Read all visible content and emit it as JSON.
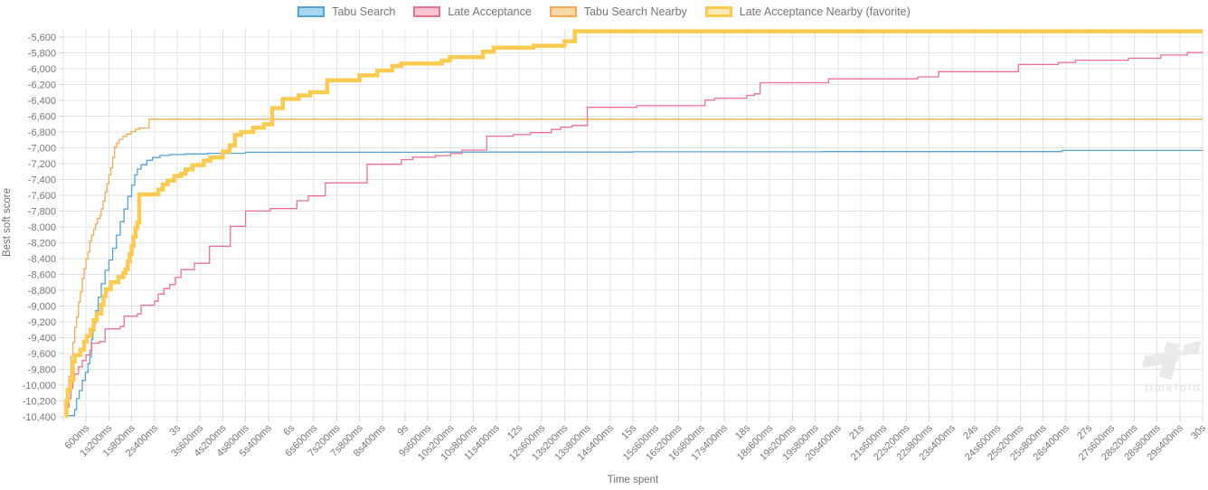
{
  "legend": {
    "items": [
      {
        "label": "Tabu Search",
        "fill": "#a9d6f1",
        "border": "#55a2da",
        "border_width": 2
      },
      {
        "label": "Late Acceptance",
        "fill": "#f9c3d0",
        "border": "#ef7190",
        "border_width": 2
      },
      {
        "label": "Tabu Search Nearby",
        "fill": "#fbd8a7",
        "border": "#f4a952",
        "border_width": 2
      },
      {
        "label": "Late Acceptance Nearby (favorite)",
        "fill": "#fdeab6",
        "border": "#fbcb50",
        "border_width": 3
      }
    ]
  },
  "watermark": {
    "text": "timefold"
  },
  "chart_data": {
    "type": "line",
    "title": "",
    "xlabel": "Time spent",
    "ylabel": "Best soft score",
    "xlim": [
      0,
      30
    ],
    "ylim": [
      -10400,
      -5500
    ],
    "grid": true,
    "legend_position": "top",
    "x_tick_interval_seconds": 0.6,
    "x_tick_labels": [
      "600ms",
      "1s200ms",
      "1s800ms",
      "2s400ms",
      "3s",
      "3s600ms",
      "4s200ms",
      "4s800ms",
      "5s400ms",
      "6s",
      "6s600ms",
      "7s200ms",
      "7s800ms",
      "8s400ms",
      "9s",
      "9s600ms",
      "10s200ms",
      "10s800ms",
      "11s400ms",
      "12s",
      "12s600ms",
      "13s200ms",
      "13s800ms",
      "14s400ms",
      "15s",
      "15s600ms",
      "16s200ms",
      "16s800ms",
      "17s400ms",
      "18s",
      "18s600ms",
      "19s200ms",
      "19s800ms",
      "20s400ms",
      "21s",
      "21s600ms",
      "22s200ms",
      "22s800ms",
      "23s400ms",
      "24s",
      "24s600ms",
      "25s200ms",
      "25s800ms",
      "26s400ms",
      "27s",
      "27s600ms",
      "28s200ms",
      "28s800ms",
      "29s400ms",
      "30s"
    ],
    "y_tick_values": [
      -5600,
      -5800,
      -6000,
      -6200,
      -6400,
      -6600,
      -6800,
      -7000,
      -7200,
      -7400,
      -7600,
      -7800,
      -8000,
      -8200,
      -8400,
      -8600,
      -8800,
      -9000,
      -9200,
      -9400,
      -9600,
      -9800,
      -10000,
      -10200,
      -10400
    ],
    "y_tick_labels": [
      "-5,600",
      "-5,800",
      "-6,000",
      "-6,200",
      "-6,400",
      "-6,600",
      "-6,800",
      "-7,000",
      "-7,200",
      "-7,400",
      "-7,600",
      "-7,800",
      "-8,000",
      "-8,200",
      "-8,400",
      "-8,600",
      "-8,800",
      "-9,000",
      "-9,200",
      "-9,400",
      "-9,600",
      "-9,800",
      "-10,000",
      "-10,200",
      "-10,400"
    ],
    "series": [
      {
        "name": "Tabu Search",
        "color": "#55a2da",
        "width": 1.3,
        "points": [
          [
            0.12,
            -10385
          ],
          [
            0.3,
            -10310
          ],
          [
            0.35,
            -10170
          ],
          [
            0.42,
            -10070
          ],
          [
            0.5,
            -9940
          ],
          [
            0.58,
            -9840
          ],
          [
            0.65,
            -9730
          ],
          [
            0.7,
            -9640
          ],
          [
            0.74,
            -9420
          ],
          [
            0.78,
            -9230
          ],
          [
            0.85,
            -9060
          ],
          [
            0.92,
            -8890
          ],
          [
            1.0,
            -8720
          ],
          [
            1.1,
            -8550
          ],
          [
            1.2,
            -8420
          ],
          [
            1.3,
            -8270
          ],
          [
            1.4,
            -8105
          ],
          [
            1.5,
            -7935
          ],
          [
            1.6,
            -7775
          ],
          [
            1.7,
            -7615
          ],
          [
            1.8,
            -7475
          ],
          [
            1.88,
            -7345
          ],
          [
            1.95,
            -7270
          ],
          [
            2.05,
            -7215
          ],
          [
            2.2,
            -7160
          ],
          [
            2.35,
            -7125
          ],
          [
            2.55,
            -7098
          ],
          [
            2.8,
            -7088
          ],
          [
            3.2,
            -7080
          ],
          [
            3.8,
            -7072
          ],
          [
            4.8,
            -7058
          ],
          [
            10,
            -7056
          ],
          [
            15,
            -7052
          ],
          [
            20,
            -7050
          ],
          [
            26.3,
            -7035
          ],
          [
            30,
            -7030
          ]
        ]
      },
      {
        "name": "Late Acceptance",
        "color": "#ef7190",
        "width": 1.3,
        "points": [
          [
            0.05,
            -10350
          ],
          [
            0.1,
            -10280
          ],
          [
            0.15,
            -10170
          ],
          [
            0.2,
            -10040
          ],
          [
            0.25,
            -9940
          ],
          [
            0.3,
            -9860
          ],
          [
            0.4,
            -9770
          ],
          [
            0.5,
            -9690
          ],
          [
            0.6,
            -9620
          ],
          [
            0.7,
            -9560
          ],
          [
            0.75,
            -9470
          ],
          [
            0.95,
            -9450
          ],
          [
            1.1,
            -9290
          ],
          [
            1.5,
            -9260
          ],
          [
            1.6,
            -9130
          ],
          [
            1.95,
            -9100
          ],
          [
            2.05,
            -8990
          ],
          [
            2.4,
            -8940
          ],
          [
            2.5,
            -8850
          ],
          [
            2.65,
            -8780
          ],
          [
            2.8,
            -8730
          ],
          [
            2.95,
            -8640
          ],
          [
            3.1,
            -8540
          ],
          [
            3.45,
            -8460
          ],
          [
            3.85,
            -8245
          ],
          [
            4.4,
            -7995
          ],
          [
            4.8,
            -7800
          ],
          [
            5.45,
            -7770
          ],
          [
            6.15,
            -7670
          ],
          [
            6.45,
            -7610
          ],
          [
            6.9,
            -7445
          ],
          [
            8.0,
            -7210
          ],
          [
            8.9,
            -7150
          ],
          [
            9.2,
            -7120
          ],
          [
            9.8,
            -7100
          ],
          [
            10.2,
            -7075
          ],
          [
            10.5,
            -7030
          ],
          [
            11.15,
            -6855
          ],
          [
            11.85,
            -6835
          ],
          [
            12.3,
            -6810
          ],
          [
            12.85,
            -6770
          ],
          [
            13.1,
            -6740
          ],
          [
            13.4,
            -6720
          ],
          [
            13.8,
            -6490
          ],
          [
            15.1,
            -6470
          ],
          [
            16.9,
            -6400
          ],
          [
            17.15,
            -6375
          ],
          [
            18.0,
            -6340
          ],
          [
            18.2,
            -6320
          ],
          [
            18.35,
            -6180
          ],
          [
            20.15,
            -6130
          ],
          [
            22.5,
            -6105
          ],
          [
            23.05,
            -6040
          ],
          [
            25.15,
            -5950
          ],
          [
            26.2,
            -5925
          ],
          [
            26.65,
            -5895
          ],
          [
            28.05,
            -5870
          ],
          [
            28.9,
            -5830
          ],
          [
            29.6,
            -5798
          ],
          [
            30,
            -5790
          ]
        ]
      },
      {
        "name": "Tabu Search Nearby",
        "color": "#f4a952",
        "width": 1.3,
        "points": [
          [
            0.05,
            -10330
          ],
          [
            0.1,
            -10090
          ],
          [
            0.15,
            -9890
          ],
          [
            0.2,
            -9640
          ],
          [
            0.25,
            -9460
          ],
          [
            0.3,
            -9270
          ],
          [
            0.35,
            -9140
          ],
          [
            0.4,
            -8950
          ],
          [
            0.45,
            -8820
          ],
          [
            0.5,
            -8650
          ],
          [
            0.55,
            -8530
          ],
          [
            0.6,
            -8405
          ],
          [
            0.65,
            -8320
          ],
          [
            0.7,
            -8180
          ],
          [
            0.75,
            -8105
          ],
          [
            0.8,
            -8030
          ],
          [
            0.85,
            -7965
          ],
          [
            0.9,
            -7895
          ],
          [
            0.97,
            -7855
          ],
          [
            1.0,
            -7775
          ],
          [
            1.05,
            -7675
          ],
          [
            1.1,
            -7560
          ],
          [
            1.15,
            -7455
          ],
          [
            1.2,
            -7345
          ],
          [
            1.25,
            -7255
          ],
          [
            1.3,
            -7125
          ],
          [
            1.35,
            -6995
          ],
          [
            1.4,
            -6945
          ],
          [
            1.47,
            -6895
          ],
          [
            1.57,
            -6858
          ],
          [
            1.67,
            -6828
          ],
          [
            1.78,
            -6798
          ],
          [
            1.9,
            -6768
          ],
          [
            2.0,
            -6752
          ],
          [
            2.26,
            -6640
          ],
          [
            30,
            -6640
          ]
        ]
      },
      {
        "name": "Late Acceptance Nearby (favorite)",
        "color": "#fbcb50",
        "width": 4.5,
        "points": [
          [
            0.05,
            -10390
          ],
          [
            0.08,
            -10200
          ],
          [
            0.12,
            -10060
          ],
          [
            0.18,
            -9940
          ],
          [
            0.25,
            -9700
          ],
          [
            0.3,
            -9620
          ],
          [
            0.45,
            -9555
          ],
          [
            0.55,
            -9450
          ],
          [
            0.62,
            -9380
          ],
          [
            0.72,
            -9300
          ],
          [
            0.8,
            -9180
          ],
          [
            0.88,
            -9095
          ],
          [
            1.0,
            -8985
          ],
          [
            1.06,
            -8875
          ],
          [
            1.12,
            -8790
          ],
          [
            1.25,
            -8700
          ],
          [
            1.45,
            -8635
          ],
          [
            1.58,
            -8585
          ],
          [
            1.64,
            -8535
          ],
          [
            1.7,
            -8435
          ],
          [
            1.75,
            -8345
          ],
          [
            1.8,
            -8245
          ],
          [
            1.85,
            -8125
          ],
          [
            1.9,
            -8015
          ],
          [
            1.95,
            -7945
          ],
          [
            2.0,
            -7590
          ],
          [
            2.5,
            -7530
          ],
          [
            2.62,
            -7465
          ],
          [
            2.75,
            -7415
          ],
          [
            2.92,
            -7360
          ],
          [
            3.1,
            -7330
          ],
          [
            3.22,
            -7275
          ],
          [
            3.4,
            -7220
          ],
          [
            3.7,
            -7165
          ],
          [
            3.87,
            -7125
          ],
          [
            4.2,
            -7048
          ],
          [
            4.38,
            -6972
          ],
          [
            4.52,
            -6840
          ],
          [
            4.68,
            -6802
          ],
          [
            5.0,
            -6748
          ],
          [
            5.28,
            -6705
          ],
          [
            5.5,
            -6500
          ],
          [
            5.78,
            -6385
          ],
          [
            6.2,
            -6340
          ],
          [
            6.5,
            -6300
          ],
          [
            6.95,
            -6150
          ],
          [
            7.8,
            -6085
          ],
          [
            8.27,
            -6025
          ],
          [
            8.66,
            -5968
          ],
          [
            8.9,
            -5938
          ],
          [
            9.97,
            -5900
          ],
          [
            10.18,
            -5855
          ],
          [
            11.05,
            -5788
          ],
          [
            11.33,
            -5738
          ],
          [
            12.38,
            -5712
          ],
          [
            13.2,
            -5655
          ],
          [
            13.47,
            -5530
          ],
          [
            30,
            -5530
          ]
        ]
      }
    ]
  }
}
